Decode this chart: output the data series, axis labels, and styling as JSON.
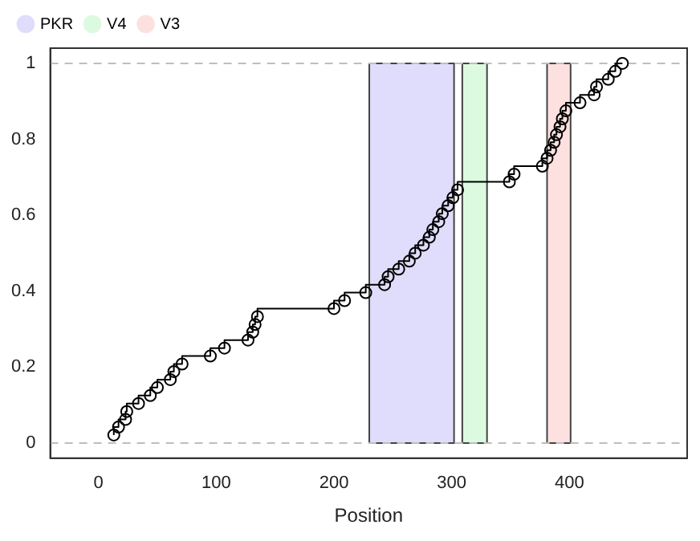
{
  "chart_data": {
    "type": "step",
    "xlabel": "Position",
    "x": [
      13,
      17,
      23,
      24,
      34,
      44,
      50,
      61,
      64,
      71,
      95,
      107,
      127,
      131,
      133,
      135,
      200,
      209,
      227,
      243,
      246,
      255,
      264,
      269,
      276,
      281,
      284,
      289,
      292,
      297,
      301,
      305,
      349,
      353,
      377,
      381,
      384,
      387,
      389,
      392,
      394,
      397,
      409,
      421,
      423,
      433,
      439,
      445
    ],
    "series": [
      {
        "color": "#000000",
        "values": [
          0.021,
          0.042,
          0.062,
          0.083,
          0.104,
          0.125,
          0.146,
          0.167,
          0.188,
          0.208,
          0.229,
          0.25,
          0.271,
          0.292,
          0.312,
          0.333,
          0.354,
          0.375,
          0.396,
          0.417,
          0.438,
          0.458,
          0.479,
          0.5,
          0.521,
          0.542,
          0.562,
          0.583,
          0.604,
          0.625,
          0.646,
          0.667,
          0.688,
          0.708,
          0.729,
          0.75,
          0.771,
          0.792,
          0.812,
          0.833,
          0.854,
          0.875,
          0.896,
          0.917,
          0.938,
          0.958,
          0.979,
          1.0
        ]
      }
    ],
    "xlim": [
      -41,
      500
    ],
    "xticks": [
      0,
      100,
      200,
      300,
      400
    ],
    "ylim": [
      -0.04,
      1.04
    ],
    "yticks": [
      0,
      0.2,
      0.4,
      0.6,
      0.8,
      1
    ],
    "ref_lines": [
      {
        "axis": "y",
        "value": 0,
        "color": "#bebebe",
        "line_style": "dashed"
      },
      {
        "axis": "y",
        "value": 1,
        "color": "#bebebe",
        "line_style": "dashed"
      }
    ],
    "bands": [
      {
        "axis": "x",
        "from": 230,
        "to": 302,
        "label": "PKR",
        "color": "#e0dcfb"
      },
      {
        "axis": "x",
        "from": 309,
        "to": 330,
        "label": "V4",
        "color": "#dcfadf"
      },
      {
        "axis": "x",
        "from": 381,
        "to": 401,
        "label": "V3",
        "color": "#fde0e0"
      }
    ],
    "marker": "circle",
    "line_style": "solid",
    "grid": false,
    "legend": "top left"
  }
}
